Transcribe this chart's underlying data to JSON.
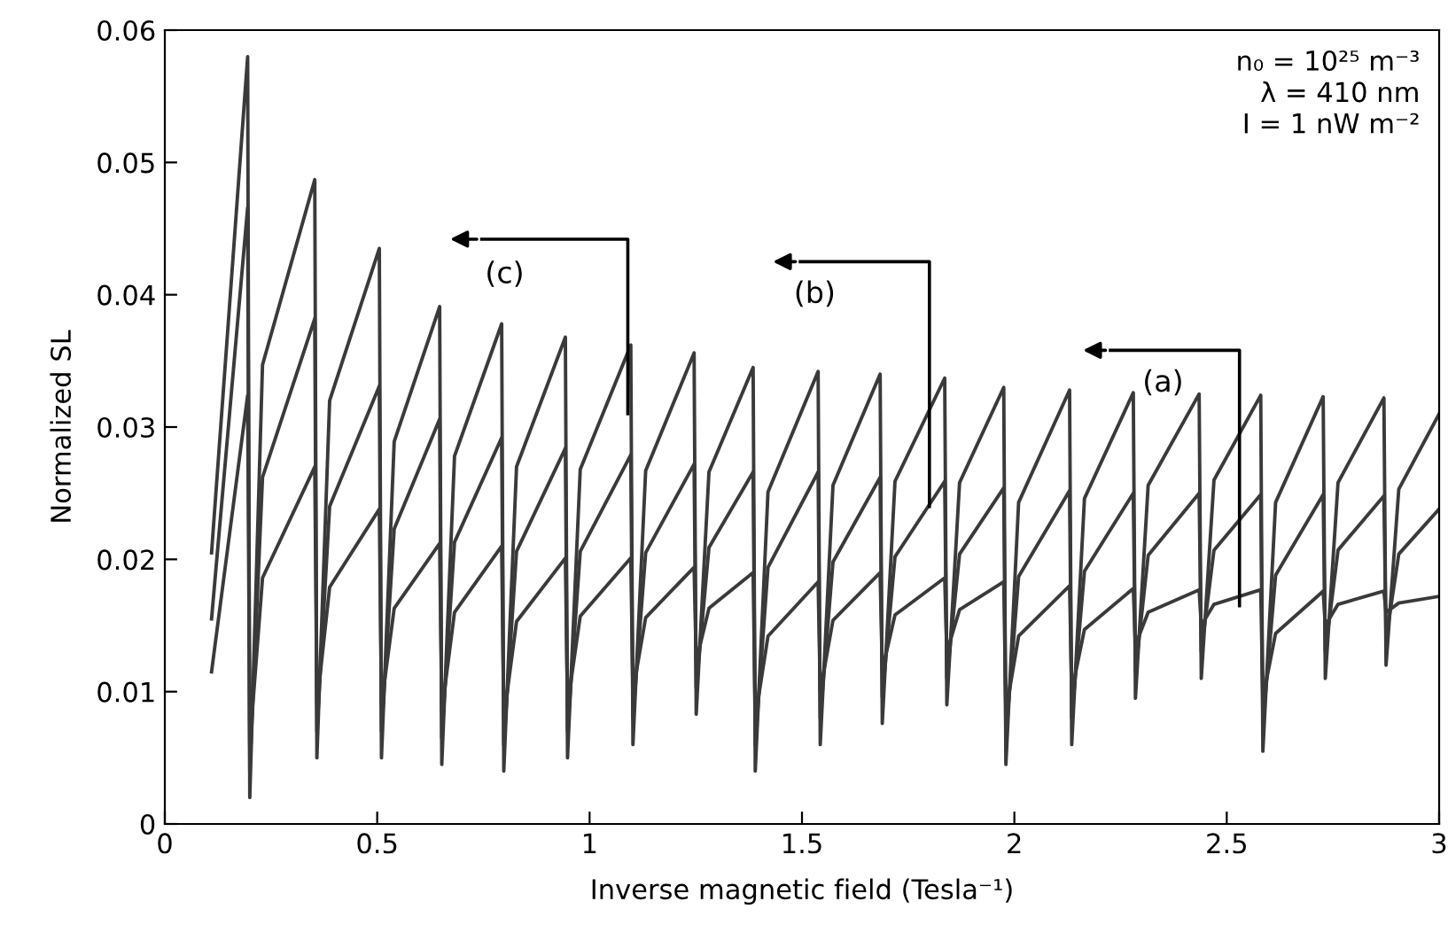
{
  "chart_data": {
    "type": "line",
    "xlabel": "Inverse magnetic field (Tesla⁻¹)",
    "ylabel": "Normalized SL",
    "x": [
      0.11,
      0.195,
      0.2,
      0.23,
      0.353,
      0.358,
      0.388,
      0.505,
      0.51,
      0.54,
      0.647,
      0.652,
      0.682,
      0.793,
      0.798,
      0.828,
      0.943,
      0.948,
      0.978,
      1.097,
      1.102,
      1.132,
      1.246,
      1.251,
      1.281,
      1.385,
      1.39,
      1.42,
      1.538,
      1.543,
      1.573,
      1.684,
      1.689,
      1.719,
      1.836,
      1.841,
      1.871,
      1.975,
      1.98,
      2.01,
      2.13,
      2.135,
      2.165,
      2.28,
      2.285,
      2.315,
      2.435,
      2.44,
      2.47,
      2.58,
      2.585,
      2.615,
      2.727,
      2.732,
      2.762,
      2.87,
      2.875,
      2.905,
      3.0
    ],
    "series": [
      {
        "color": "#3a3a3a",
        "values": [
          0.0205,
          0.058,
          0.002,
          0.0347,
          0.0487,
          0.005,
          0.032,
          0.0435,
          0.005,
          0.0289,
          0.0391,
          0.0045,
          0.0278,
          0.0378,
          0.004,
          0.027,
          0.0368,
          0.005,
          0.0268,
          0.0362,
          0.006,
          0.0267,
          0.0356,
          0.0083,
          0.0266,
          0.0345,
          0.004,
          0.0251,
          0.0342,
          0.006,
          0.0256,
          0.034,
          0.0076,
          0.0259,
          0.0337,
          0.009,
          0.0258,
          0.033,
          0.0045,
          0.0243,
          0.0328,
          0.006,
          0.0246,
          0.0326,
          0.0095,
          0.0256,
          0.0325,
          0.011,
          0.026,
          0.0324,
          0.0055,
          0.0243,
          0.0323,
          0.011,
          0.0258,
          0.0322,
          0.012,
          0.0253,
          0.031
        ]
      },
      {
        "color": "#3a3a3a",
        "values": [
          0.0155,
          0.0466,
          0.004,
          0.0262,
          0.0382,
          0.007,
          0.024,
          0.0331,
          0.007,
          0.0223,
          0.0306,
          0.0065,
          0.0213,
          0.0292,
          0.006,
          0.0206,
          0.0284,
          0.007,
          0.0206,
          0.0279,
          0.008,
          0.0205,
          0.0272,
          0.0103,
          0.0209,
          0.0266,
          0.006,
          0.0194,
          0.0266,
          0.008,
          0.0198,
          0.0262,
          0.0096,
          0.0202,
          0.0259,
          0.011,
          0.0204,
          0.0254,
          0.0065,
          0.0187,
          0.0252,
          0.008,
          0.0191,
          0.025,
          0.0115,
          0.0203,
          0.025,
          0.013,
          0.0207,
          0.0249,
          0.0075,
          0.0188,
          0.0249,
          0.013,
          0.0207,
          0.0248,
          0.014,
          0.0204,
          0.0238
        ]
      },
      {
        "color": "#3a3a3a",
        "values": [
          0.0115,
          0.0324,
          0.006,
          0.0186,
          0.027,
          0.009,
          0.0179,
          0.0238,
          0.009,
          0.0163,
          0.0212,
          0.0085,
          0.016,
          0.021,
          0.008,
          0.0153,
          0.0201,
          0.009,
          0.0157,
          0.0201,
          0.01,
          0.0156,
          0.0194,
          0.0123,
          0.0163,
          0.019,
          0.008,
          0.0142,
          0.0183,
          0.01,
          0.0154,
          0.019,
          0.0116,
          0.0158,
          0.0186,
          0.013,
          0.0162,
          0.0183,
          0.0085,
          0.0142,
          0.018,
          0.01,
          0.0147,
          0.0178,
          0.0135,
          0.016,
          0.0177,
          0.015,
          0.0166,
          0.0177,
          0.0095,
          0.0144,
          0.0176,
          0.015,
          0.0166,
          0.0176,
          0.016,
          0.0167,
          0.0172
        ]
      }
    ],
    "xlim": [
      0,
      3
    ],
    "xticks": [
      0,
      0.5,
      1,
      1.5,
      2,
      2.5,
      3
    ],
    "ylim": [
      0,
      0.06
    ],
    "yticks": [
      0,
      0.01,
      0.02,
      0.03,
      0.04,
      0.05,
      0.06
    ],
    "grid": false,
    "legend": false,
    "annotations": [
      {
        "text": "(a)",
        "x": 2.53,
        "y": 0.0165
      },
      {
        "text": "(b)",
        "x": 1.8,
        "y": 0.024
      },
      {
        "text": "(c)",
        "x": 1.09,
        "y": 0.031
      },
      "n₀ = 10²⁵ m⁻³\nλ = 410 nm\nI = 1 nW m⁻²"
    ]
  }
}
